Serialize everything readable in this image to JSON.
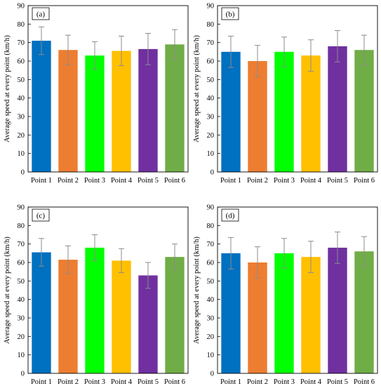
{
  "chart_data": [
    {
      "type": "bar",
      "panel_label": "(a)",
      "ylabel": "Average speed at every point (km/h)",
      "ylim": [
        0,
        90
      ],
      "yticks": [
        0,
        10,
        20,
        30,
        40,
        50,
        60,
        70,
        80,
        90
      ],
      "categories": [
        "Point 1",
        "Point 2",
        "Point 3",
        "Point 4",
        "Point 5",
        "Point 6"
      ],
      "values": [
        71,
        66,
        63,
        65.5,
        66.5,
        69
      ],
      "errors": [
        7.5,
        8,
        7.5,
        8,
        8.5,
        8
      ],
      "colors": [
        "#0070C0",
        "#ED7D31",
        "#00FF00",
        "#FFC000",
        "#7030A0",
        "#70AD47"
      ]
    },
    {
      "type": "bar",
      "panel_label": "(b)",
      "ylabel": "Average speed at every point (km/h)",
      "ylim": [
        0,
        90
      ],
      "yticks": [
        0,
        10,
        20,
        30,
        40,
        50,
        60,
        70,
        80,
        90
      ],
      "categories": [
        "Point 1",
        "Point 2",
        "Point 3",
        "Point 4",
        "Point 5",
        "Point 6"
      ],
      "values": [
        65,
        60,
        65,
        63,
        68,
        66
      ],
      "errors": [
        8.5,
        8.5,
        8,
        8.5,
        8.5,
        8
      ],
      "colors": [
        "#0070C0",
        "#ED7D31",
        "#00FF00",
        "#FFC000",
        "#7030A0",
        "#70AD47"
      ]
    },
    {
      "type": "bar",
      "panel_label": "(c)",
      "ylabel": "Average speed at every point (km/h)",
      "ylim": [
        0,
        90
      ],
      "yticks": [
        0,
        10,
        20,
        30,
        40,
        50,
        60,
        70,
        80,
        90
      ],
      "categories": [
        "Point 1",
        "Point 2",
        "Point 3",
        "Point 4",
        "Point 5",
        "Point 6"
      ],
      "values": [
        65.5,
        61.5,
        68,
        61,
        53,
        63
      ],
      "errors": [
        7.5,
        7.5,
        7,
        6.5,
        7,
        7
      ],
      "colors": [
        "#0070C0",
        "#ED7D31",
        "#00FF00",
        "#FFC000",
        "#7030A0",
        "#70AD47"
      ]
    },
    {
      "type": "bar",
      "panel_label": "(d)",
      "ylabel": "Average speed at every point (km/h)",
      "ylim": [
        0,
        90
      ],
      "yticks": [
        0,
        10,
        20,
        30,
        40,
        50,
        60,
        70,
        80,
        90
      ],
      "categories": [
        "Point 1",
        "Point 2",
        "Point 3",
        "Point 4",
        "Point 5",
        "Point 6"
      ],
      "values": [
        65,
        60,
        65,
        63,
        68,
        66
      ],
      "errors": [
        8.5,
        8.5,
        8,
        8.5,
        8.5,
        8
      ],
      "colors": [
        "#0070C0",
        "#ED7D31",
        "#00FF00",
        "#FFC000",
        "#7030A0",
        "#70AD47"
      ]
    }
  ]
}
